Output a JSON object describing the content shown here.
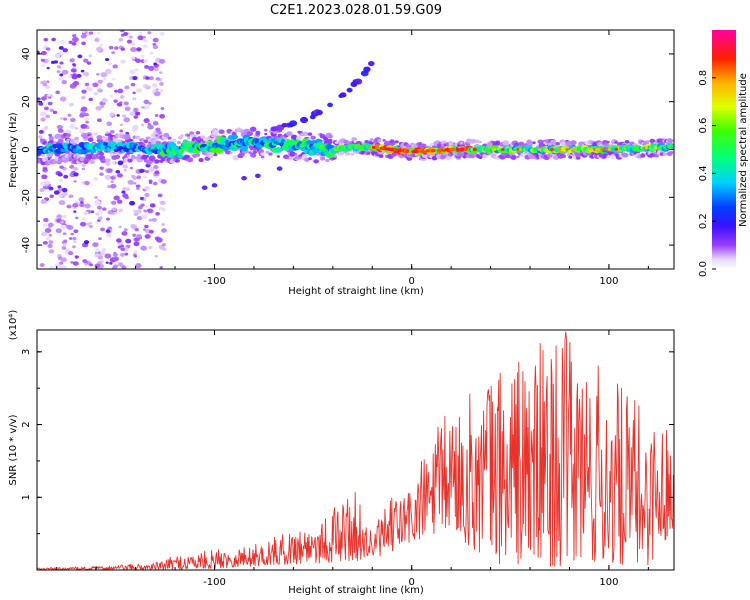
{
  "figure": {
    "title": "C2E1.2023.028.01.59.G09"
  },
  "chart_data": [
    {
      "type": "heatmap",
      "xlabel": "Height of straight line (km)",
      "ylabel": "Frequency (Hz)",
      "xlim": [
        -190,
        133
      ],
      "ylim": [
        -50,
        50
      ],
      "x_ticks": [
        -100,
        0,
        100
      ],
      "x_tick_labels": [
        "-100",
        "0",
        "100"
      ],
      "y_ticks": [
        -40,
        -20,
        0,
        20,
        40
      ],
      "y_tick_labels": [
        "-40",
        "-20",
        "0",
        "20",
        "40"
      ],
      "colorbar": {
        "label": "Normalized spectral amplitude",
        "range": [
          0,
          1
        ],
        "ticks": [
          0.0,
          0.2,
          0.4,
          0.6,
          0.8
        ],
        "tick_labels": [
          "0.0",
          "0.2",
          "0.4",
          "0.6",
          "0.8"
        ],
        "colormap": "rainbow (white-violet-blue-cyan-green-yellow-orange-red-magenta)"
      },
      "grid": false,
      "features": {
        "ridge": [
          [
            -190,
            0
          ],
          [
            -150,
            1
          ],
          [
            -120,
            0
          ],
          [
            -100,
            2
          ],
          [
            -80,
            3
          ],
          [
            -60,
            2
          ],
          [
            -40,
            0
          ],
          [
            -30,
            1
          ],
          [
            -20,
            1
          ],
          [
            0,
            -1
          ],
          [
            20,
            0
          ],
          [
            60,
            0
          ],
          [
            100,
            0
          ],
          [
            133,
            1
          ]
        ],
        "branch": [
          [
            -70,
            8
          ],
          [
            -50,
            14
          ],
          [
            -40,
            20
          ],
          [
            -30,
            26
          ],
          [
            -20,
            36
          ]
        ]
      }
    },
    {
      "type": "line",
      "xlabel": "Height of straight line (km)",
      "ylabel": "SNR (10 * v/v)",
      "y_multiplier_label": "(x10⁴)",
      "xlim": [
        -190,
        133
      ],
      "ylim": [
        0,
        3.3
      ],
      "x_ticks": [
        -100,
        0,
        100
      ],
      "x_tick_labels": [
        "-100",
        "0",
        "100"
      ],
      "y_ticks": [
        1,
        2,
        3
      ],
      "y_tick_labels": [
        "1",
        "2",
        "3"
      ],
      "color": "#e8322b",
      "grid": false,
      "series": [
        {
          "envelope_x": [
            -190,
            -160,
            -130,
            -120,
            -100,
            -80,
            -60,
            -40,
            -30,
            -20,
            -10,
            0,
            10,
            20,
            30,
            40,
            60,
            80,
            100,
            120,
            133
          ],
          "envelope_max": [
            0.03,
            0.05,
            0.1,
            0.2,
            0.28,
            0.35,
            0.55,
            0.85,
            1.15,
            0.55,
            1.0,
            1.2,
            1.85,
            2.3,
            2.45,
            2.8,
            3.1,
            3.3,
            2.7,
            2.2,
            1.9
          ],
          "envelope_min": [
            0.0,
            0.0,
            0.0,
            0.0,
            0.02,
            0.05,
            0.08,
            0.1,
            0.12,
            0.15,
            0.25,
            0.35,
            0.45,
            0.55,
            0.3,
            0.1,
            0.05,
            0.05,
            0.05,
            0.05,
            0.6
          ]
        }
      ]
    }
  ]
}
